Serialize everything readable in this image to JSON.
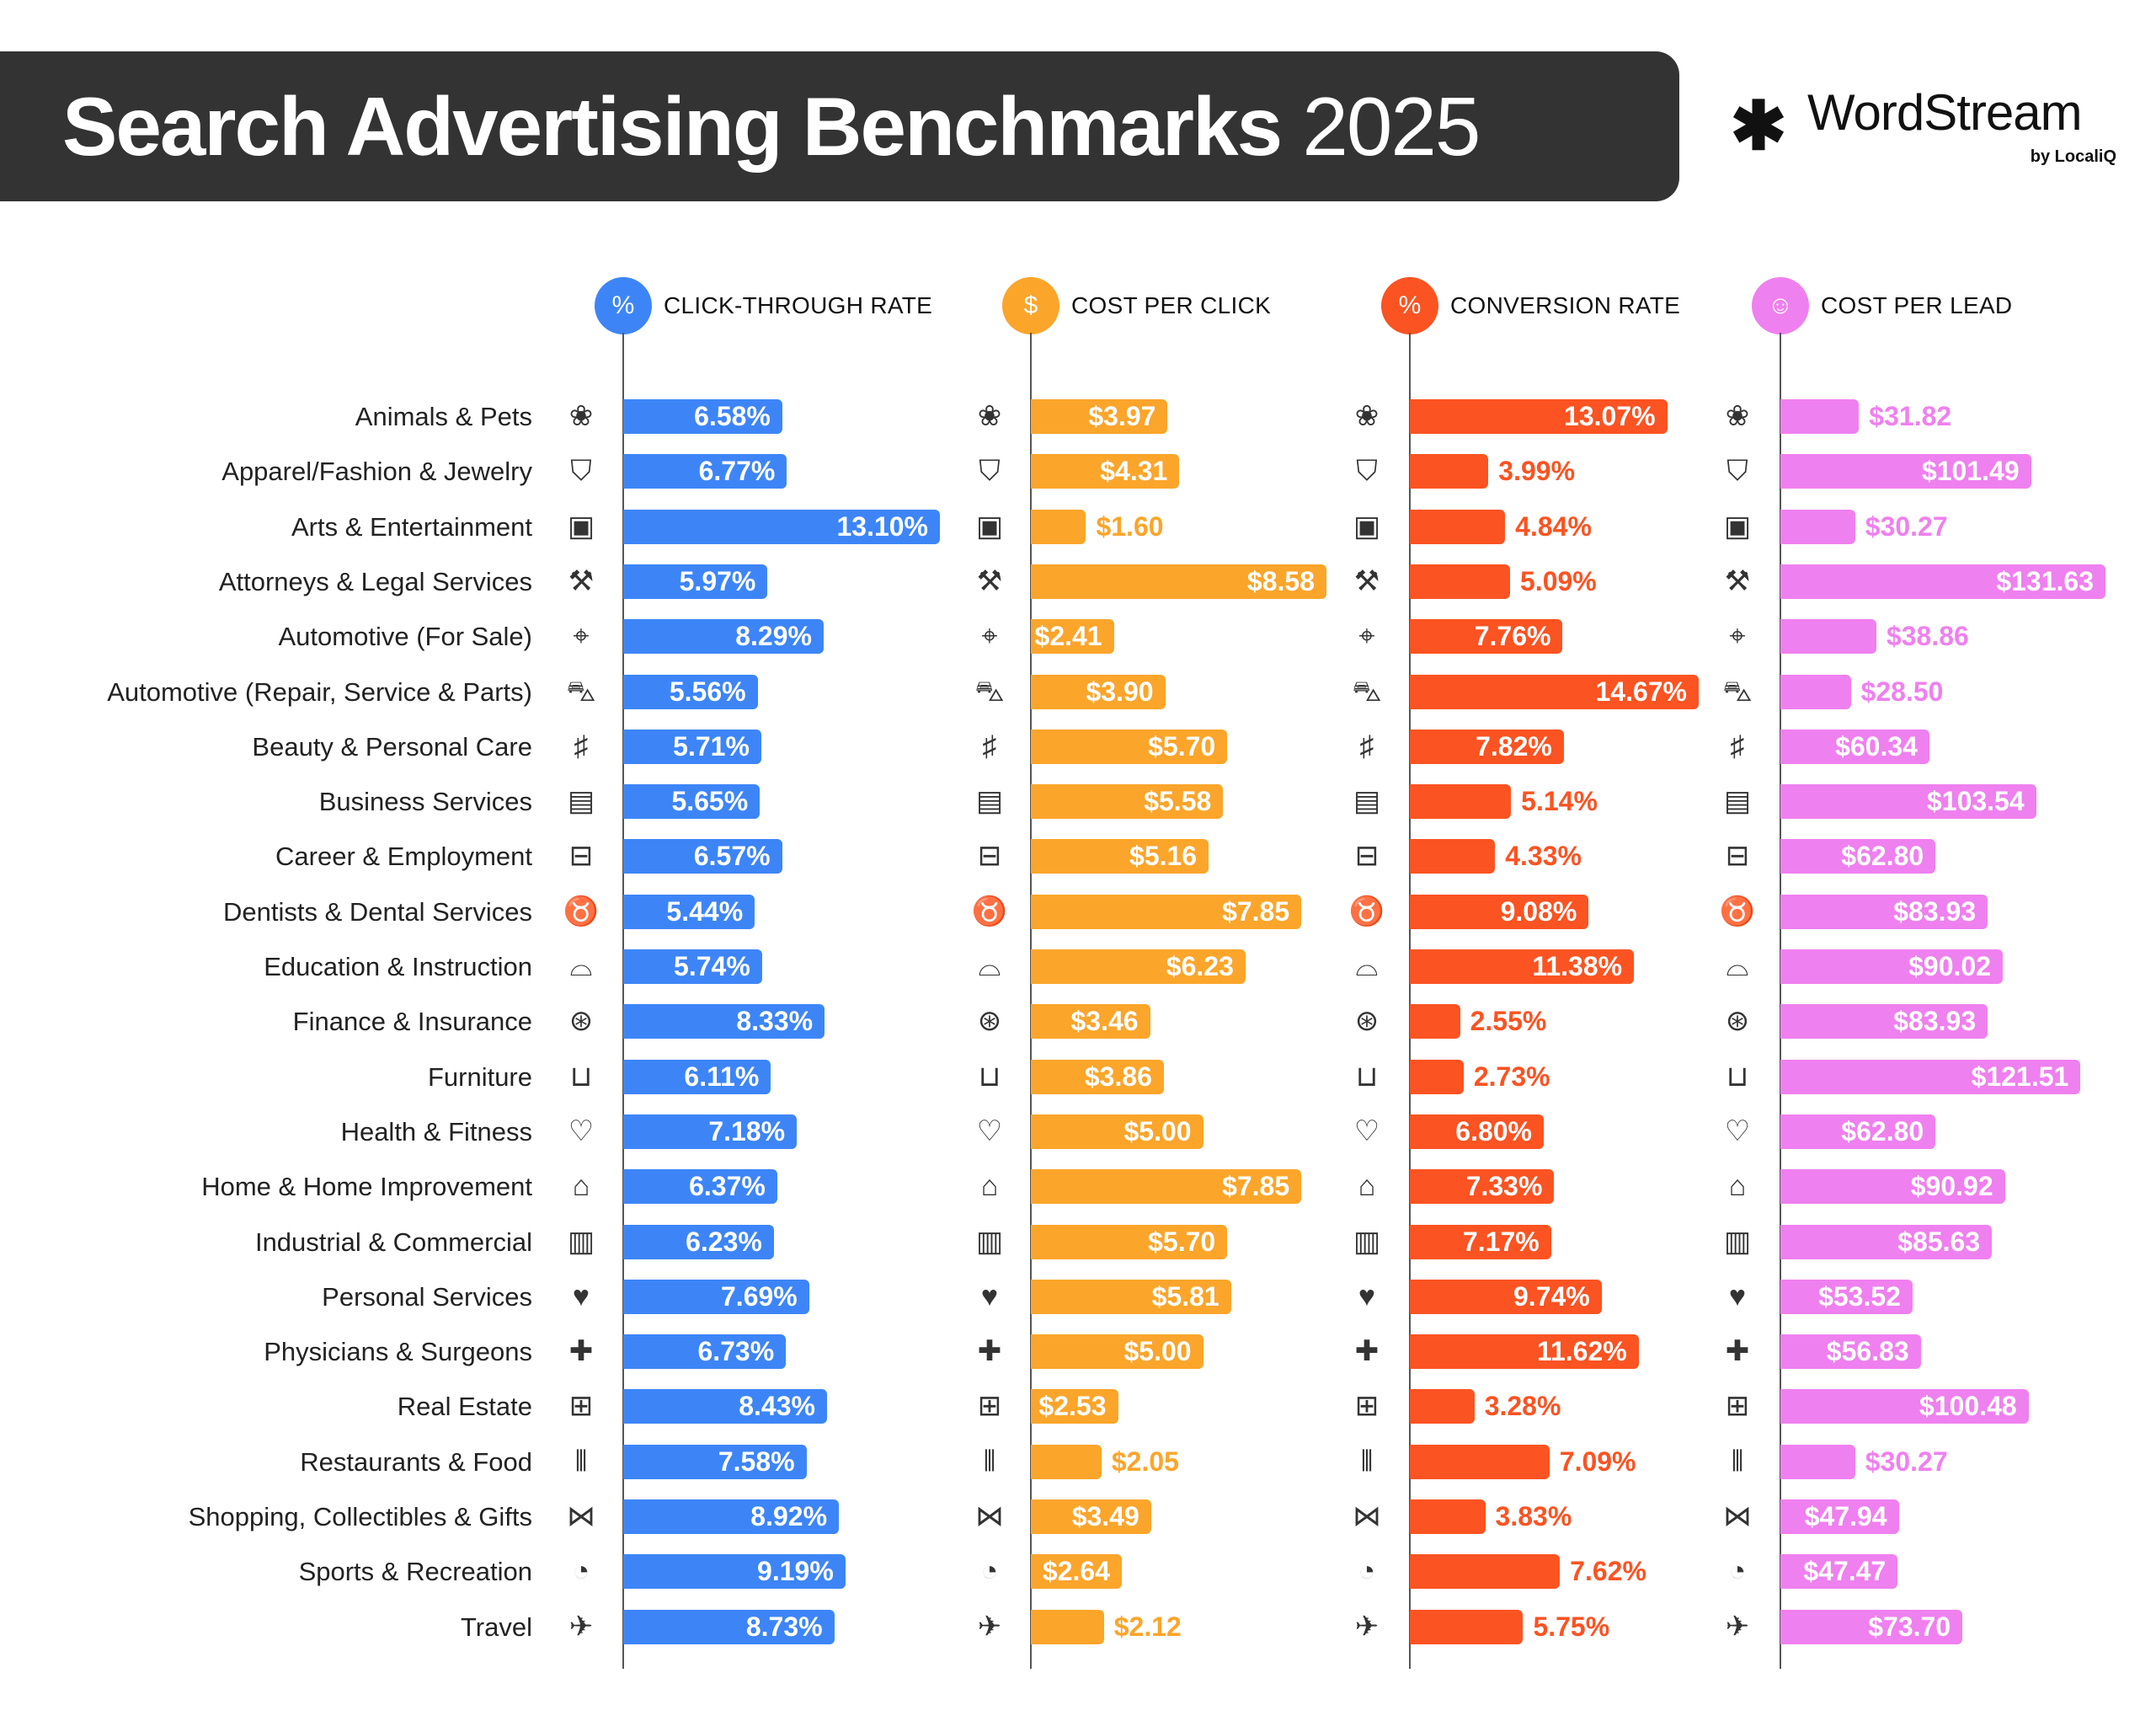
{
  "header": {
    "title_bold": "Search Advertising Benchmarks",
    "title_year": "2025"
  },
  "logo": {
    "name": "WordStream",
    "sub": "by LocaliQ"
  },
  "chart_data": {
    "type": "bar",
    "orientation": "horizontal",
    "title": "Search Advertising Benchmarks 2025",
    "categories": [
      "Animals & Pets",
      "Apparel/Fashion & Jewelry",
      "Arts & Entertainment",
      "Attorneys & Legal Services",
      "Automotive (For Sale)",
      "Automotive (Repair, Service & Parts)",
      "Beauty & Personal Care",
      "Business Services",
      "Career & Employment",
      "Dentists & Dental Services",
      "Education & Instruction",
      "Finance & Insurance",
      "Furniture",
      "Health & Fitness",
      "Home & Home Improvement",
      "Industrial & Commercial",
      "Personal Services",
      "Physicians & Surgeons",
      "Real Estate",
      "Restaurants & Food",
      "Shopping, Collectibles & Gifts",
      "Sports & Recreation",
      "Travel"
    ],
    "category_icons": [
      "paw-icon",
      "tshirt-icon",
      "picture-icon",
      "gavel-icon",
      "car-tag-icon",
      "car-icon",
      "comb-icon",
      "document-icon",
      "briefcase-icon",
      "tooth-icon",
      "graduation-cap-icon",
      "piggy-bank-icon",
      "armchair-icon",
      "heart-plus-icon",
      "house-icon",
      "factory-icon",
      "hand-heart-icon",
      "medical-cross-icon",
      "storefront-icon",
      "fork-knife-icon",
      "bow-icon",
      "ball-icon",
      "airplane-icon"
    ],
    "series": [
      {
        "name": "CLICK-THROUGH RATE",
        "icon": "cursor-percent-icon",
        "color": "#3D85F7",
        "unit": "%",
        "values": [
          6.58,
          6.77,
          13.1,
          5.97,
          8.29,
          5.56,
          5.71,
          5.65,
          6.57,
          5.44,
          5.74,
          8.33,
          6.11,
          7.18,
          6.37,
          6.23,
          7.69,
          6.73,
          8.43,
          7.58,
          8.92,
          9.19,
          8.73
        ],
        "labels": [
          "6.58%",
          "6.77%",
          "13.10%",
          "5.97%",
          "8.29%",
          "5.56%",
          "5.71%",
          "5.65%",
          "6.57%",
          "5.44%",
          "5.74%",
          "8.33%",
          "6.11%",
          "7.18%",
          "6.37%",
          "6.23%",
          "7.69%",
          "6.73%",
          "8.43%",
          "7.58%",
          "8.92%",
          "9.19%",
          "8.73%"
        ]
      },
      {
        "name": "COST PER CLICK",
        "icon": "cursor-dollar-icon",
        "color": "#FBA52B",
        "unit": "$",
        "values": [
          3.97,
          4.31,
          1.6,
          8.58,
          2.41,
          3.9,
          5.7,
          5.58,
          5.16,
          7.85,
          6.23,
          3.46,
          3.86,
          5.0,
          7.85,
          5.7,
          5.81,
          5.0,
          2.53,
          2.05,
          3.49,
          2.64,
          2.12
        ],
        "labels": [
          "$3.97",
          "$4.31",
          "$1.60",
          "$8.58",
          "$2.41",
          "$3.90",
          "$5.70",
          "$5.58",
          "$5.16",
          "$7.85",
          "$6.23",
          "$3.46",
          "$3.86",
          "$5.00",
          "$7.85",
          "$5.70",
          "$5.81",
          "$5.00",
          "$2.53",
          "$2.05",
          "$3.49",
          "$2.64",
          "$2.12"
        ]
      },
      {
        "name": "CONVERSION RATE",
        "icon": "percent-circle-icon",
        "color": "#FB5322",
        "unit": "%",
        "values": [
          13.07,
          3.99,
          4.84,
          5.09,
          7.76,
          14.67,
          7.82,
          5.14,
          4.33,
          9.08,
          11.38,
          2.55,
          2.73,
          6.8,
          7.33,
          7.17,
          9.74,
          11.62,
          3.28,
          7.09,
          3.83,
          7.62,
          5.75
        ],
        "labels": [
          "13.07%",
          "3.99%",
          "4.84%",
          "5.09%",
          "7.76%",
          "14.67%",
          "7.82%",
          "5.14%",
          "4.33%",
          "9.08%",
          "11.38%",
          "2.55%",
          "2.73%",
          "6.80%",
          "7.33%",
          "7.17%",
          "9.74%",
          "11.62%",
          "3.28%",
          "7.09%",
          "3.83%",
          "7.62%",
          "5.75%"
        ]
      },
      {
        "name": "COST PER LEAD",
        "icon": "person-dollar-icon",
        "color": "#EF80EF",
        "unit": "$",
        "values": [
          31.82,
          101.49,
          30.27,
          131.63,
          38.86,
          28.5,
          60.34,
          103.54,
          62.8,
          83.93,
          90.02,
          83.93,
          121.51,
          62.8,
          90.92,
          85.63,
          53.52,
          56.83,
          100.48,
          30.27,
          47.94,
          47.47,
          73.7
        ],
        "labels": [
          "$31.82",
          "$101.49",
          "$30.27",
          "$131.63",
          "$38.86",
          "$28.50",
          "$60.34",
          "$103.54",
          "$62.80",
          "$83.93",
          "$90.02",
          "$83.93",
          "$121.51",
          "$62.80",
          "$90.92",
          "$85.63",
          "$53.52",
          "$56.83",
          "$100.48",
          "$30.27",
          "$47.94",
          "$47.47",
          "$73.70"
        ]
      }
    ],
    "grid": false,
    "legend": "top"
  }
}
